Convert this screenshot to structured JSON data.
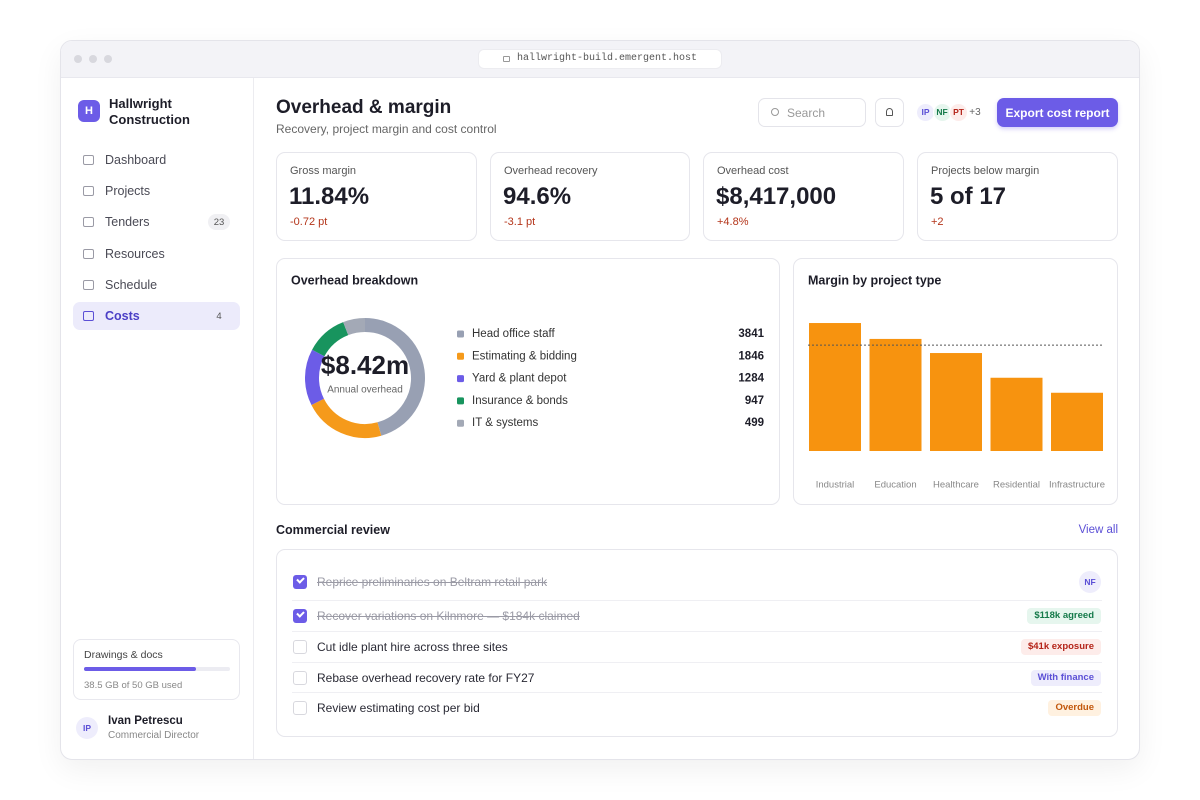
{
  "browser": {
    "url": "hallwright-build.emergent.host"
  },
  "sidebar": {
    "brand_initial": "H",
    "brand": "Hallwright Construction",
    "nav": [
      {
        "label": "Dashboard"
      },
      {
        "label": "Projects"
      },
      {
        "label": "Tenders",
        "badge": "23"
      },
      {
        "label": "Resources"
      },
      {
        "label": "Schedule"
      },
      {
        "label": "Costs",
        "badge": "4",
        "active": true
      }
    ],
    "storage": {
      "title": "Drawings & docs",
      "used_text": "38.5 GB of 50 GB used",
      "used": 38.5,
      "total": 50
    },
    "user": {
      "initials": "IP",
      "name": "Ivan Petrescu",
      "role": "Commercial Director"
    }
  },
  "header": {
    "title": "Overhead & margin",
    "subtitle": "Recovery, project margin and cost control",
    "search_placeholder": "Search",
    "avatars": [
      "IP",
      "NF",
      "PT"
    ],
    "avatar_more": "+3",
    "export_button": "Export cost report"
  },
  "kpis": [
    {
      "label": "Gross margin",
      "value": "11.84%",
      "delta": "-0.72 pt"
    },
    {
      "label": "Overhead recovery",
      "value": "94.6%",
      "delta": "-3.1 pt"
    },
    {
      "label": "Overhead cost",
      "value": "$8,417,000",
      "delta": "+4.8%"
    },
    {
      "label": "Projects below margin",
      "value": "5 of 17",
      "delta": "+2"
    }
  ],
  "chart_data": [
    {
      "type": "donut",
      "title": "Overhead breakdown",
      "center_value": "$8.42m",
      "center_label": "Annual overhead",
      "categories": [
        "Head office staff",
        "Estimating & bidding",
        "Yard & plant depot",
        "Insurance & bonds",
        "IT & systems"
      ],
      "values": [
        3841,
        1846,
        1284,
        947,
        499
      ],
      "colors": [
        "#98a0b3",
        "#f59a1b",
        "#6c5ce7",
        "#18945e",
        "#a3a9b6"
      ]
    },
    {
      "type": "bar",
      "title": "Margin by project type",
      "categories": [
        "Industrial",
        "Education",
        "Healthcare",
        "Residential",
        "Infrastructure"
      ],
      "values": [
        14.5,
        12.7,
        11.1,
        8.3,
        6.6
      ],
      "color": "#f7930f",
      "target": 12
    }
  ],
  "review": {
    "title": "Commercial review",
    "view_all": "View all",
    "tasks": [
      {
        "text": "Reprice preliminaries on Beltram retail park",
        "done": true,
        "assignee": "NF"
      },
      {
        "text": "Recover variations on Kilnmore — $184k claimed",
        "done": true,
        "tag": "$118k agreed",
        "tone": "green"
      },
      {
        "text": "Cut idle plant hire across three sites",
        "done": false,
        "tag": "$41k exposure",
        "tone": "red"
      },
      {
        "text": "Rebase overhead recovery rate for FY27",
        "done": false,
        "tag": "With finance",
        "tone": "purple"
      },
      {
        "text": "Review estimating cost per bid",
        "done": false,
        "tag": "Overdue",
        "tone": "orange"
      }
    ]
  }
}
